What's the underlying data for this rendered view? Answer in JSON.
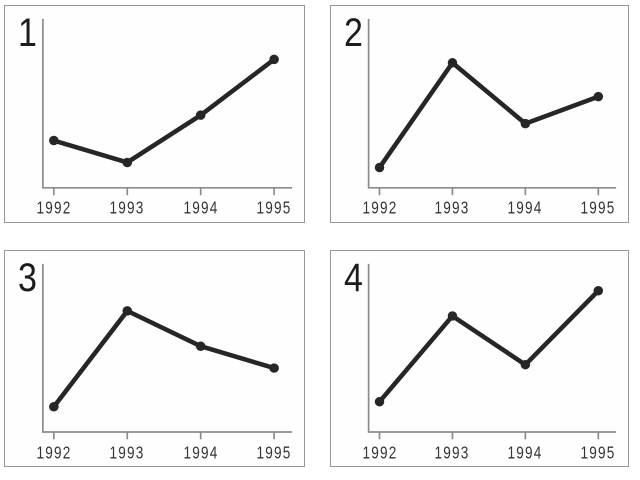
{
  "page": {
    "background": "#ffffff"
  },
  "styles": {
    "line_color": "#262626",
    "dot_color": "#262626",
    "axis_color": "#8c8c8c",
    "panel_border_color": "#979797",
    "label_color": "#1c1c1c",
    "tick_label_color": "#343434"
  },
  "chart_data": [
    {
      "type": "line",
      "label": "1",
      "title": "",
      "categories": [
        "1992",
        "1993",
        "1994",
        "1995"
      ],
      "values": [
        28,
        15,
        43,
        76
      ],
      "xlabel": "",
      "ylabel": "",
      "ylim": [
        0,
        100
      ],
      "value_scale": "relative height, y axis unlabeled in image",
      "marker": "filled-circle",
      "grid": false,
      "legend": false
    },
    {
      "type": "line",
      "label": "2",
      "title": "",
      "categories": [
        "1992",
        "1993",
        "1994",
        "1995"
      ],
      "values": [
        12,
        74,
        38,
        54
      ],
      "xlabel": "",
      "ylabel": "",
      "ylim": [
        0,
        100
      ],
      "value_scale": "relative height, y axis unlabeled in image",
      "marker": "filled-circle",
      "grid": false,
      "legend": false
    },
    {
      "type": "line",
      "label": "3",
      "title": "",
      "categories": [
        "1992",
        "1993",
        "1994",
        "1995"
      ],
      "values": [
        15,
        72,
        51,
        38
      ],
      "xlabel": "",
      "ylabel": "",
      "ylim": [
        0,
        100
      ],
      "value_scale": "relative height, y axis unlabeled in image",
      "marker": "filled-circle",
      "grid": false,
      "legend": false
    },
    {
      "type": "line",
      "label": "4",
      "title": "",
      "categories": [
        "1992",
        "1993",
        "1994",
        "1995"
      ],
      "values": [
        18,
        69,
        40,
        84
      ],
      "xlabel": "",
      "ylabel": "",
      "ylim": [
        0,
        100
      ],
      "value_scale": "relative height, y axis unlabeled in image",
      "marker": "filled-circle",
      "grid": false,
      "legend": false
    }
  ]
}
